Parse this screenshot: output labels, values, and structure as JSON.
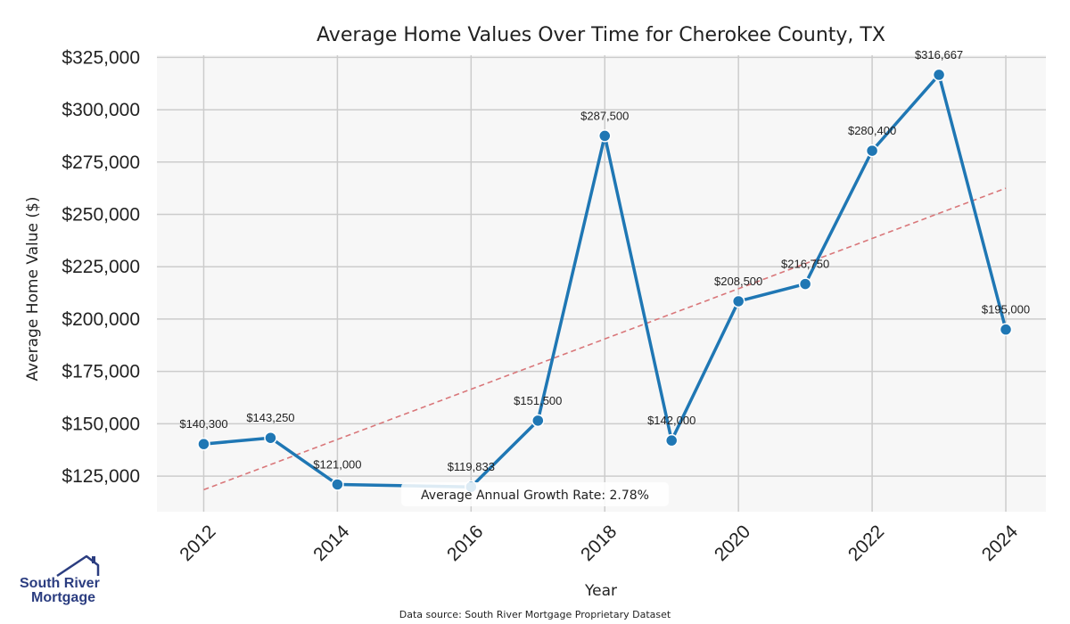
{
  "chart_data": {
    "type": "line",
    "title": "Average Home Values Over Time for Cherokee County, TX",
    "xlabel": "Year",
    "ylabel": "Average Home Value ($)",
    "x": [
      2012,
      2013,
      2014,
      2016,
      2017,
      2018,
      2019,
      2020,
      2021,
      2022,
      2023,
      2024
    ],
    "values": [
      140300,
      143250,
      121000,
      119833,
      151500,
      287500,
      142000,
      208500,
      216750,
      280400,
      316667,
      195000
    ],
    "data_labels": [
      "$140,300",
      "$143,250",
      "$121,000",
      "$119,833",
      "$151,500",
      "$287,500",
      "$142,000",
      "$208,500",
      "$216,750",
      "$280,400",
      "$316,667",
      "$195,000"
    ],
    "xlim": [
      2011.3,
      2024.6
    ],
    "ylim": [
      108000,
      326000
    ],
    "xticks": [
      2012,
      2014,
      2016,
      2018,
      2020,
      2022,
      2024
    ],
    "xtick_labels": [
      "2012",
      "2014",
      "2016",
      "2018",
      "2020",
      "2022",
      "2024"
    ],
    "yticks": [
      125000,
      150000,
      175000,
      200000,
      225000,
      250000,
      275000,
      300000,
      325000
    ],
    "ytick_labels": [
      "$125,000",
      "$150,000",
      "$175,000",
      "$200,000",
      "$225,000",
      "$250,000",
      "$275,000",
      "$300,000",
      "$325,000"
    ],
    "grid": true,
    "trend_line": {
      "x": [
        2012,
        2024
      ],
      "values": [
        118500,
        262500
      ]
    },
    "annotation": "Average Annual Growth Rate: 2.78%",
    "colors": {
      "line": "#1f77b4",
      "trend": "#d9777a",
      "grid": "#cccccc",
      "plot_bg": "#f7f7f7"
    }
  },
  "footer": {
    "source": "Data source: South River Mortgage Proprietary Dataset"
  },
  "logo": {
    "line1": "South River",
    "line2": "Mortgage",
    "color": "#2b3d80"
  }
}
